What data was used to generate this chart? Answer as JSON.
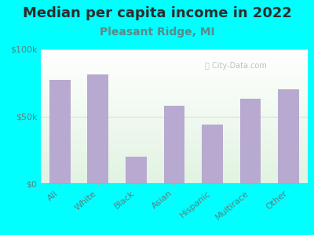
{
  "title": "Median per capita income in 2022",
  "subtitle": "Pleasant Ridge, MI",
  "categories": [
    "All",
    "White",
    "Black",
    "Asian",
    "Hispanic",
    "Multirace",
    "Other"
  ],
  "values": [
    77000,
    81000,
    20000,
    58000,
    44000,
    63000,
    70000
  ],
  "bar_color": "#b8a9d0",
  "background_color": "#00ffff",
  "title_color": "#2d2d2d",
  "subtitle_color": "#5a8a8a",
  "axis_label_color": "#5a8080",
  "ytick_labels": [
    "$0",
    "$50k",
    "$100k"
  ],
  "ytick_values": [
    0,
    50000,
    100000
  ],
  "ylim": [
    0,
    100000
  ],
  "watermark": "City-Data.com",
  "title_fontsize": 13,
  "subtitle_fontsize": 10,
  "tick_fontsize": 8
}
